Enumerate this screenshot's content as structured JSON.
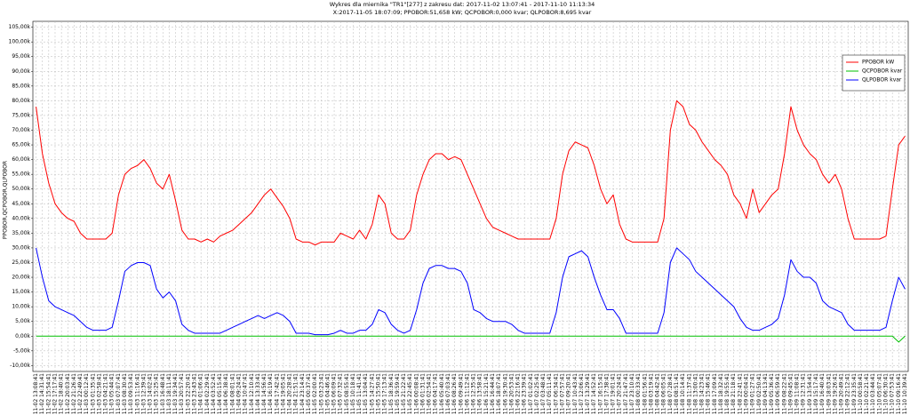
{
  "chart_data": {
    "type": "line",
    "title": "Wykres dla miernika \"TR1\"[277] z zakresu dat: 2017-11-02 13:07:41 - 2017-11-10 11:13:34",
    "subtitle": "X:2017-11-05 18:07:09; PPOBOR:51,658 kW; QCPOBOR:0,000 kvar; QLPOBOR:8,695 kvar",
    "ylabel": "PPOBOR,QCPOBOR,QLPOBOR",
    "categories": [
      "11-02 13:08:41",
      "11-02 14:31:41",
      "11-02 15:54:41",
      "11-02 17:17:41",
      "11-02 18:40:41",
      "11-02 20:03:41",
      "11-02 21:26:41",
      "11-02 22:49:41",
      "11-03 00:12:41",
      "11-03 01:35:41",
      "11-03 02:58:41",
      "11-03 04:21:41",
      "11-03 05:44:41",
      "11-03 07:07:41",
      "11-03 08:30:41",
      "11-03 09:53:41",
      "11-03 11:16:41",
      "11-03 12:39:41",
      "11-03 14:02:41",
      "11-03 15:25:41",
      "11-03 16:48:41",
      "11-03 18:11:41",
      "11-03 19:34:41",
      "11-03 20:57:41",
      "11-03 22:20:41",
      "11-03 23:43:41",
      "11-04 01:06:41",
      "11-04 02:29:41",
      "11-04 03:52:41",
      "11-04 05:15:41",
      "11-04 06:38:41",
      "11-04 08:01:41",
      "11-04 09:24:41",
      "11-04 10:47:41",
      "11-04 12:10:41",
      "11-04 13:33:41",
      "11-04 14:56:41",
      "11-04 16:19:41",
      "11-04 17:42:41",
      "11-04 19:05:41",
      "11-04 20:28:41",
      "11-04 21:51:41",
      "11-04 23:14:41",
      "11-05 00:37:41",
      "11-05 02:00:41",
      "11-05 03:23:41",
      "11-05 04:46:41",
      "11-05 06:09:41",
      "11-05 07:32:41",
      "11-05 08:55:41",
      "11-05 10:18:41",
      "11-05 11:41:41",
      "11-05 13:04:41",
      "11-05 14:27:41",
      "11-05 15:50:41",
      "11-05 17:13:41",
      "11-05 18:36:41",
      "11-05 19:59:41",
      "11-05 21:22:41",
      "11-05 22:45:41",
      "11-06 00:08:41",
      "11-06 01:31:41",
      "11-06 02:54:41",
      "11-06 04:17:41",
      "11-06 05:40:41",
      "11-06 07:03:41",
      "11-06 08:26:41",
      "11-06 09:49:41",
      "11-06 11:12:41",
      "11-06 12:35:41",
      "11-06 13:58:41",
      "11-06 15:21:41",
      "11-06 16:44:41",
      "11-06 18:07:41",
      "11-06 19:30:41",
      "11-06 20:53:41",
      "11-06 22:16:41",
      "11-06 23:39:41",
      "11-07 01:02:41",
      "11-07 02:25:41",
      "11-07 03:48:41",
      "11-07 05:11:41",
      "11-07 06:34:41",
      "11-07 07:57:41",
      "11-07 09:20:41",
      "11-07 10:43:41",
      "11-07 12:06:41",
      "11-07 13:29:41",
      "11-07 14:52:41",
      "11-07 16:15:41",
      "11-07 17:38:41",
      "11-07 19:01:41",
      "11-07 20:24:41",
      "11-07 21:47:41",
      "11-07 23:10:41",
      "11-08 00:33:41",
      "11-08 01:56:41",
      "11-08 03:19:41",
      "11-08 04:42:41",
      "11-08 06:05:41",
      "11-08 07:28:41",
      "11-08 08:51:41",
      "11-08 10:14:41",
      "11-08 11:37:41",
      "11-08 13:00:41",
      "11-08 14:23:41",
      "11-08 15:46:41",
      "11-08 17:09:41",
      "11-08 18:32:41",
      "11-08 19:55:41",
      "11-08 21:18:41",
      "11-08 22:41:41",
      "11-09 00:04:41",
      "11-09 01:27:41",
      "11-09 02:50:41",
      "11-09 04:13:41",
      "11-09 05:36:41",
      "11-09 06:59:41",
      "11-09 08:22:41",
      "11-09 09:45:41",
      "11-09 11:08:41",
      "11-09 12:31:41",
      "11-09 13:54:41",
      "11-09 15:17:41",
      "11-09 16:40:41",
      "11-09 18:03:41",
      "11-09 19:26:41",
      "11-09 20:49:41",
      "11-09 22:12:41",
      "11-09 23:35:41",
      "11-10 00:58:41",
      "11-10 02:21:41",
      "11-10 03:44:41",
      "11-10 05:07:41",
      "11-10 06:30:41",
      "11-10 07:53:41",
      "11-10 09:16:41",
      "11-10 10:39:41"
    ],
    "series": [
      {
        "name": "PPOBOR kW",
        "color": "#ff0000",
        "values": [
          78000,
          62000,
          52000,
          45000,
          42000,
          40000,
          39000,
          35000,
          33000,
          33000,
          33000,
          33000,
          35000,
          48000,
          55000,
          57000,
          58000,
          60000,
          57000,
          52000,
          50000,
          55000,
          46000,
          36000,
          33000,
          33000,
          32000,
          33000,
          32000,
          34000,
          35000,
          36000,
          38000,
          40000,
          42000,
          45000,
          48000,
          50000,
          47000,
          44000,
          40000,
          33000,
          32000,
          32000,
          31000,
          32000,
          32000,
          32000,
          35000,
          34000,
          33000,
          36000,
          33000,
          38000,
          48000,
          45000,
          35000,
          33000,
          33000,
          36000,
          48000,
          55000,
          60000,
          62000,
          62000,
          60000,
          61000,
          60000,
          55000,
          50000,
          45000,
          40000,
          37000,
          36000,
          35000,
          34000,
          33000,
          33000,
          33000,
          33000,
          33000,
          33000,
          40000,
          55000,
          63000,
          66000,
          65000,
          64000,
          58000,
          50000,
          45000,
          48000,
          38000,
          33000,
          32000,
          32000,
          32000,
          32000,
          32000,
          40000,
          70000,
          80000,
          78000,
          72000,
          70000,
          66000,
          63000,
          60000,
          58000,
          55000,
          48000,
          45000,
          40000,
          50000,
          42000,
          45000,
          48000,
          50000,
          62000,
          78000,
          70000,
          65000,
          62000,
          60000,
          55000,
          52000,
          55000,
          50000,
          40000,
          33000,
          33000,
          33000,
          33000,
          33000,
          34000,
          50000,
          65000,
          68000
        ]
      },
      {
        "name": "QCPOBOR kvar",
        "color": "#00c000",
        "values": [
          0,
          0,
          0,
          0,
          0,
          0,
          0,
          0,
          0,
          0,
          0,
          0,
          0,
          0,
          0,
          0,
          0,
          0,
          0,
          0,
          0,
          0,
          0,
          0,
          0,
          0,
          0,
          0,
          0,
          0,
          0,
          0,
          0,
          0,
          0,
          0,
          0,
          0,
          0,
          0,
          0,
          0,
          0,
          0,
          0,
          0,
          0,
          0,
          0,
          0,
          0,
          0,
          0,
          0,
          0,
          0,
          0,
          0,
          0,
          0,
          0,
          0,
          0,
          0,
          0,
          0,
          0,
          0,
          0,
          0,
          0,
          0,
          0,
          0,
          0,
          0,
          0,
          0,
          0,
          0,
          0,
          0,
          0,
          0,
          0,
          0,
          0,
          0,
          0,
          0,
          0,
          0,
          0,
          0,
          0,
          0,
          0,
          0,
          0,
          0,
          0,
          0,
          0,
          0,
          0,
          0,
          0,
          0,
          0,
          0,
          0,
          0,
          0,
          0,
          0,
          0,
          0,
          0,
          0,
          0,
          0,
          0,
          0,
          0,
          0,
          0,
          0,
          0,
          0,
          0,
          0,
          0,
          0,
          0,
          0,
          0,
          -2000,
          0
        ]
      },
      {
        "name": "QLPOBOR kvar",
        "color": "#0000ff",
        "values": [
          30000,
          20000,
          12000,
          10000,
          9000,
          8000,
          7000,
          5000,
          3000,
          2000,
          2000,
          2000,
          3000,
          12000,
          22000,
          24000,
          25000,
          25000,
          24000,
          16000,
          13000,
          15000,
          12000,
          4000,
          2000,
          1000,
          1000,
          1000,
          1000,
          1000,
          2000,
          3000,
          4000,
          5000,
          6000,
          7000,
          6000,
          7000,
          8000,
          7000,
          5000,
          1000,
          1000,
          1000,
          500,
          500,
          500,
          1000,
          2000,
          1000,
          1000,
          2000,
          2000,
          4000,
          9000,
          8000,
          4000,
          2000,
          1000,
          2000,
          9000,
          18000,
          23000,
          24000,
          24000,
          23000,
          23000,
          22000,
          18000,
          9000,
          8000,
          6000,
          5000,
          5000,
          5000,
          4000,
          2000,
          1000,
          1000,
          1000,
          1000,
          1000,
          8000,
          20000,
          27000,
          28000,
          29000,
          27000,
          20000,
          14000,
          9000,
          9000,
          6000,
          1000,
          1000,
          1000,
          1000,
          1000,
          1000,
          8000,
          25000,
          30000,
          28000,
          26000,
          22000,
          20000,
          18000,
          16000,
          14000,
          12000,
          10000,
          6000,
          3000,
          2000,
          2000,
          3000,
          4000,
          6000,
          14000,
          26000,
          22000,
          20000,
          20000,
          18000,
          12000,
          10000,
          9000,
          8000,
          4000,
          2000,
          2000,
          2000,
          2000,
          2000,
          3000,
          12000,
          20000,
          16000
        ]
      }
    ],
    "ylim": [
      -12000,
      107000
    ],
    "yticks": [
      {
        "value": -10000,
        "label": "-10,00k"
      },
      {
        "value": -5000,
        "label": "-5,00k"
      },
      {
        "value": 0,
        "label": "0,00k"
      },
      {
        "value": 5000,
        "label": "5,00k"
      },
      {
        "value": 10000,
        "label": "10,00k"
      },
      {
        "value": 15000,
        "label": "15,00k"
      },
      {
        "value": 20000,
        "label": "20,00k"
      },
      {
        "value": 25000,
        "label": "25,00k"
      },
      {
        "value": 30000,
        "label": "30,00k"
      },
      {
        "value": 35000,
        "label": "35,00k"
      },
      {
        "value": 40000,
        "label": "40,00k"
      },
      {
        "value": 45000,
        "label": "45,00k"
      },
      {
        "value": 50000,
        "label": "50,00k"
      },
      {
        "value": 55000,
        "label": "55,00k"
      },
      {
        "value": 60000,
        "label": "60,00k"
      },
      {
        "value": 65000,
        "label": "65,00k"
      },
      {
        "value": 70000,
        "label": "70,00k"
      },
      {
        "value": 75000,
        "label": "75,00k"
      },
      {
        "value": 80000,
        "label": "80,00k"
      },
      {
        "value": 85000,
        "label": "85,00k"
      },
      {
        "value": 90000,
        "label": "90,00k"
      },
      {
        "value": 95000,
        "label": "95,00k"
      },
      {
        "value": 100000,
        "label": "100,00k"
      },
      {
        "value": 105000,
        "label": "105,00k"
      }
    ],
    "grid": true,
    "legend_position": "upper right"
  }
}
